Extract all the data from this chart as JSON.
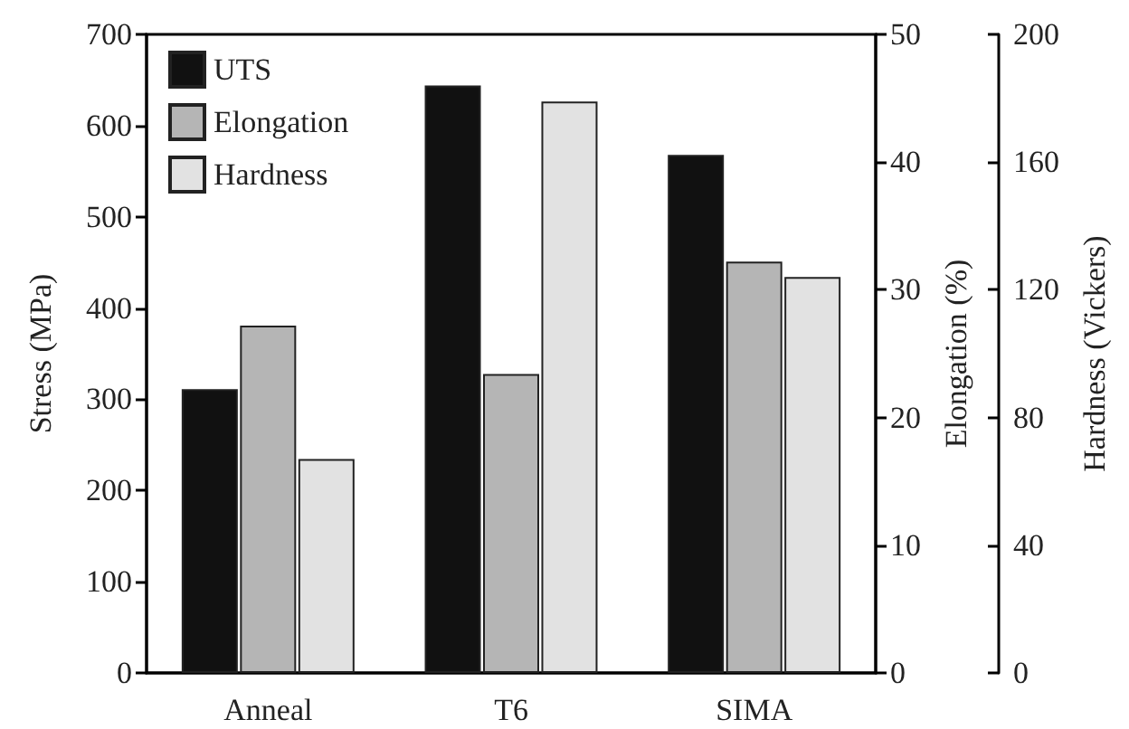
{
  "chart_data": {
    "type": "bar",
    "categories": [
      "Anneal",
      "T6",
      "SIMA"
    ],
    "series": [
      {
        "name": "UTS",
        "color": "#111111",
        "values": [
          311,
          644,
          568
        ]
      },
      {
        "name": "Elongation",
        "color": "#b5b5b5",
        "values": [
          27.2,
          23.4,
          32.2
        ],
        "axis": "y2"
      },
      {
        "name": "Hardness",
        "color": "#e2e2e2",
        "values": [
          67,
          179,
          124
        ],
        "axis": "y3"
      }
    ],
    "ylabel": "Stress (MPa)",
    "y2label": "Elongation (%)",
    "y3label": "Hardness (Vickers)",
    "ylim": [
      0,
      700
    ],
    "yticks": [
      0,
      100,
      200,
      300,
      400,
      500,
      600,
      700
    ],
    "y2lim": [
      0,
      50
    ],
    "y2ticks": [
      0,
      10,
      20,
      30,
      40,
      50
    ],
    "y3lim": [
      0,
      200
    ],
    "y3ticks": [
      0,
      40,
      80,
      120,
      160,
      200
    ],
    "grid": false,
    "legend": "top left"
  }
}
